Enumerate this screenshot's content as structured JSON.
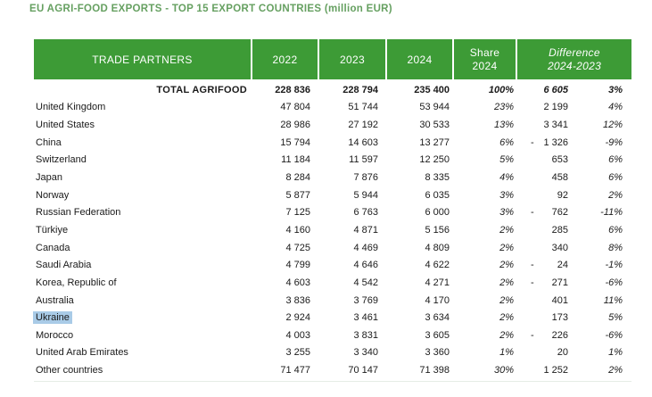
{
  "title": "EU AGRI-FOOD EXPORTS - TOP 15 EXPORT COUNTRIES (million EUR)",
  "colors": {
    "header_green": "#3d9b36",
    "title_green": "#66a061",
    "highlight_blue": "#a9cbe7"
  },
  "table": {
    "headers": {
      "partners": "TRADE PARTNERS",
      "y2022": "2022",
      "y2023": "2023",
      "y2024": "2024",
      "share_line1": "Share",
      "share_line2": "2024",
      "diff_line1": "Difference",
      "diff_line2": "2024-2023"
    },
    "rows": [
      {
        "name": "TOTAL AGRIFOOD",
        "v2022": "228 836",
        "v2023": "228 794",
        "v2024": "235 400",
        "share": "100%",
        "diff": "6 605",
        "diff_pct": "3%",
        "total": true,
        "highlight": false
      },
      {
        "name": "United Kingdom",
        "v2022": "47 804",
        "v2023": "51 744",
        "v2024": "53 944",
        "share": "23%",
        "diff": "2 199",
        "diff_pct": "4%",
        "total": false,
        "highlight": false
      },
      {
        "name": "United States",
        "v2022": "28 986",
        "v2023": "27 192",
        "v2024": "30 533",
        "share": "13%",
        "diff": "3 341",
        "diff_pct": "12%",
        "total": false,
        "highlight": false
      },
      {
        "name": "China",
        "v2022": "15 794",
        "v2023": "14 603",
        "v2024": "13 277",
        "share": "6%",
        "diff": "- 1 326",
        "diff_pct": "-9%",
        "total": false,
        "highlight": false
      },
      {
        "name": "Switzerland",
        "v2022": "11 184",
        "v2023": "11 597",
        "v2024": "12 250",
        "share": "5%",
        "diff": "653",
        "diff_pct": "6%",
        "total": false,
        "highlight": false
      },
      {
        "name": "Japan",
        "v2022": "8 284",
        "v2023": "7 876",
        "v2024": "8 335",
        "share": "4%",
        "diff": "458",
        "diff_pct": "6%",
        "total": false,
        "highlight": false
      },
      {
        "name": "Norway",
        "v2022": "5 877",
        "v2023": "5 944",
        "v2024": "6 035",
        "share": "3%",
        "diff": "92",
        "diff_pct": "2%",
        "total": false,
        "highlight": false
      },
      {
        "name": "Russian Federation",
        "v2022": "7 125",
        "v2023": "6 763",
        "v2024": "6 000",
        "share": "3%",
        "diff": "- 762",
        "diff_pct": "-11%",
        "total": false,
        "highlight": false
      },
      {
        "name": "Türkiye",
        "v2022": "4 160",
        "v2023": "4 871",
        "v2024": "5 156",
        "share": "2%",
        "diff": "285",
        "diff_pct": "6%",
        "total": false,
        "highlight": false
      },
      {
        "name": "Canada",
        "v2022": "4 725",
        "v2023": "4 469",
        "v2024": "4 809",
        "share": "2%",
        "diff": "340",
        "diff_pct": "8%",
        "total": false,
        "highlight": false
      },
      {
        "name": "Saudi Arabia",
        "v2022": "4 799",
        "v2023": "4 646",
        "v2024": "4 622",
        "share": "2%",
        "diff": "- 24",
        "diff_pct": "-1%",
        "total": false,
        "highlight": false
      },
      {
        "name": "Korea, Republic of",
        "v2022": "4 603",
        "v2023": "4 542",
        "v2024": "4 271",
        "share": "2%",
        "diff": "- 271",
        "diff_pct": "-6%",
        "total": false,
        "highlight": false
      },
      {
        "name": "Australia",
        "v2022": "3 836",
        "v2023": "3 769",
        "v2024": "4 170",
        "share": "2%",
        "diff": "401",
        "diff_pct": "11%",
        "total": false,
        "highlight": false
      },
      {
        "name": "Ukraine",
        "v2022": "2 924",
        "v2023": "3 461",
        "v2024": "3 634",
        "share": "2%",
        "diff": "173",
        "diff_pct": "5%",
        "total": false,
        "highlight": true
      },
      {
        "name": "Morocco",
        "v2022": "4 003",
        "v2023": "3 831",
        "v2024": "3 605",
        "share": "2%",
        "diff": "- 226",
        "diff_pct": "-6%",
        "total": false,
        "highlight": false
      },
      {
        "name": "United Arab Emirates",
        "v2022": "3 255",
        "v2023": "3 340",
        "v2024": "3 360",
        "share": "1%",
        "diff": "20",
        "diff_pct": "1%",
        "total": false,
        "highlight": false
      },
      {
        "name": "Other countries",
        "v2022": "71 477",
        "v2023": "70 147",
        "v2024": "71 398",
        "share": "30%",
        "diff": "1 252",
        "diff_pct": "2%",
        "total": false,
        "highlight": false
      }
    ]
  }
}
